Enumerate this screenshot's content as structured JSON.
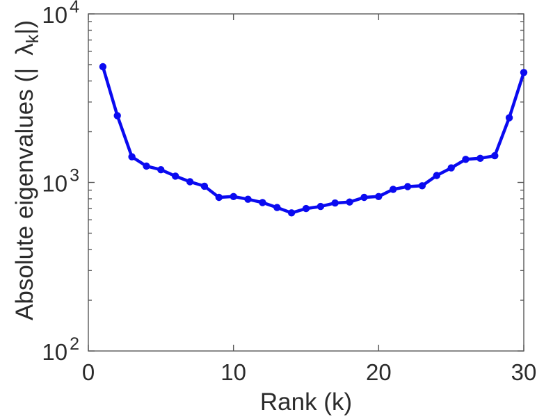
{
  "figure": {
    "background": "#ffffff"
  },
  "chart_data": {
    "type": "line",
    "title": "",
    "xlabel": "Rank (k)",
    "ylabel": "Absolute eigenvalues (|λk|)",
    "ylabel_parts": {
      "prefix": "Absolute eigenvalues (|",
      "symbol": "λ",
      "subscript": "k",
      "suffix": "|)"
    },
    "x": [
      1,
      2,
      3,
      4,
      5,
      6,
      7,
      8,
      9,
      10,
      11,
      12,
      13,
      14,
      15,
      16,
      17,
      18,
      19,
      20,
      21,
      22,
      23,
      24,
      25,
      26,
      27,
      28,
      29,
      30
    ],
    "y": [
      4860,
      2490,
      1420,
      1250,
      1190,
      1090,
      1010,
      950,
      815,
      825,
      795,
      760,
      710,
      660,
      700,
      720,
      755,
      765,
      815,
      825,
      910,
      945,
      955,
      1100,
      1220,
      1370,
      1390,
      1440,
      2420,
      4490
    ],
    "xlim": [
      0,
      30
    ],
    "x_tick_values": [
      0,
      10,
      20,
      30
    ],
    "x_tick_labels": [
      "0",
      "10",
      "20",
      "30"
    ],
    "y_scale": "log10",
    "y_exponent_range": [
      2,
      4
    ],
    "y_tick_exponents": [
      2,
      3,
      4
    ],
    "y_tick_base": "10",
    "y_minor_multiples": [
      2,
      3,
      4,
      5,
      6,
      7,
      8,
      9
    ],
    "grid": false,
    "legend": null,
    "series_color": "#0a0af0",
    "axis_color": "#595959",
    "text_color": "#2b2b2b",
    "marker": "circle-filled",
    "line_width": 4.5,
    "marker_radius": 5.2
  }
}
